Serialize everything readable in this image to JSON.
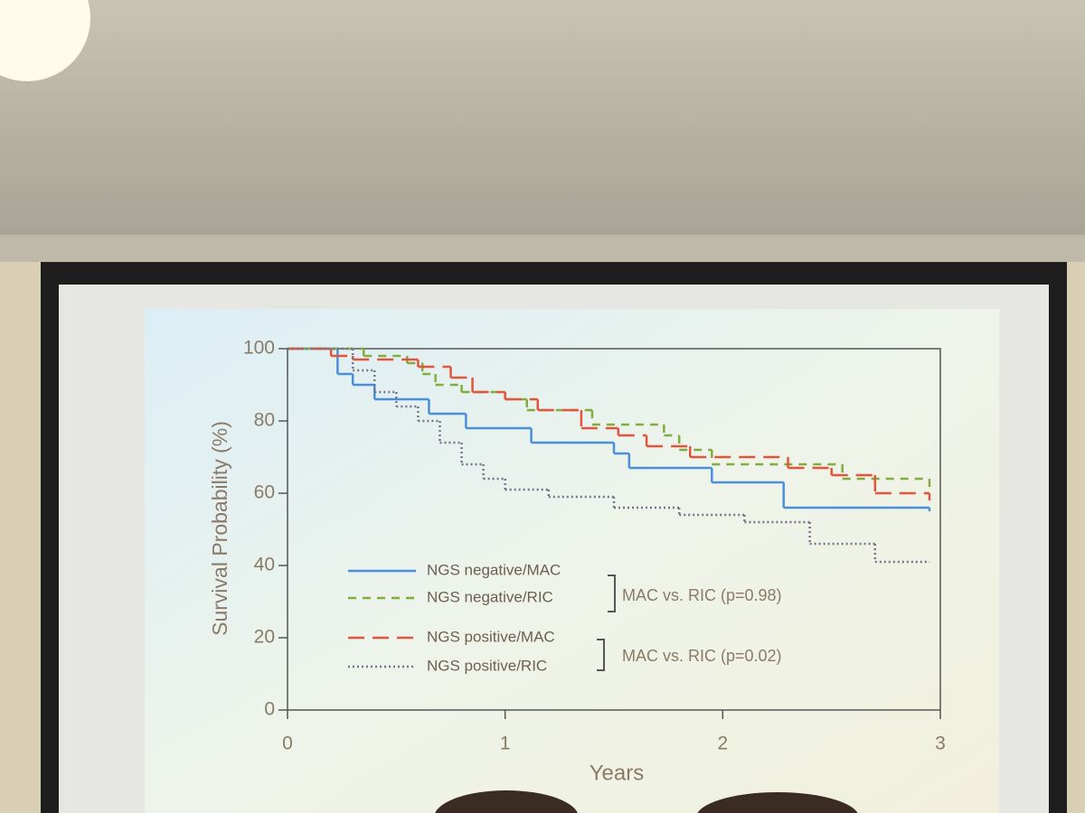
{
  "chart_data": {
    "type": "step",
    "y_label": "Survival Probability (%)",
    "x_label": "Years",
    "xlim": [
      0,
      3
    ],
    "ylim": [
      0,
      100
    ],
    "xticks": [
      0,
      1,
      2,
      3
    ],
    "yticks": [
      0,
      20,
      40,
      60,
      80,
      100
    ],
    "series": [
      {
        "name": "NGS negative/MAC",
        "color": "#4a8fdc",
        "style": "solid",
        "x": [
          0,
          0.23,
          0.3,
          0.4,
          0.65,
          0.82,
          1.12,
          1.5,
          1.57,
          1.95,
          2.28,
          2.95
        ],
        "values": [
          100,
          93,
          90,
          86,
          82,
          78,
          74,
          71,
          67,
          63,
          56,
          55
        ]
      },
      {
        "name": "NGS negative/RIC",
        "color": "#82ad3e",
        "style": "dashed",
        "x": [
          0,
          0.35,
          0.55,
          0.62,
          0.68,
          0.8,
          1.0,
          1.1,
          1.4,
          1.73,
          1.8,
          1.95,
          2.55,
          2.95
        ],
        "values": [
          100,
          98,
          96,
          93,
          90,
          88,
          86,
          83,
          79,
          76,
          72,
          68,
          64,
          61
        ]
      },
      {
        "name": "NGS positive/MAC",
        "color": "#e2553c",
        "style": "longdash",
        "x": [
          0,
          0.2,
          0.3,
          0.6,
          0.75,
          0.85,
          1.0,
          1.15,
          1.35,
          1.52,
          1.65,
          1.85,
          2.3,
          2.5,
          2.7,
          2.95
        ],
        "values": [
          100,
          98,
          97,
          95,
          92,
          88,
          86,
          83,
          78,
          76,
          73,
          70,
          67,
          65,
          60,
          58
        ]
      },
      {
        "name": "NGS positive/RIC",
        "color": "#74748a",
        "style": "dotted",
        "x": [
          0,
          0.3,
          0.4,
          0.5,
          0.6,
          0.7,
          0.8,
          0.9,
          1.0,
          1.2,
          1.5,
          1.8,
          2.1,
          2.4,
          2.7,
          2.95
        ],
        "values": [
          100,
          94,
          88,
          84,
          80,
          74,
          68,
          64,
          61,
          59,
          56,
          54,
          52,
          46,
          41,
          41
        ]
      }
    ],
    "annotations": [
      "MAC vs. RIC (p=0.98)",
      "MAC vs. RIC (p=0.02)"
    ]
  }
}
